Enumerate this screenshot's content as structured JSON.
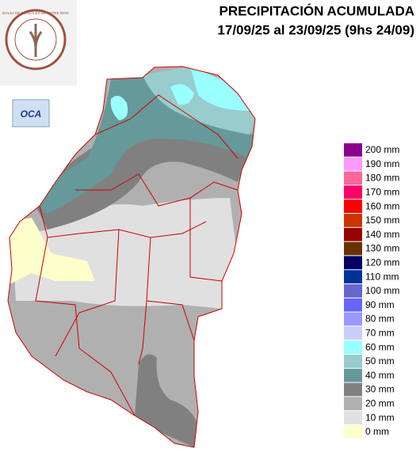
{
  "header": {
    "title": "PRECIPITACIÓN ACUMULADA",
    "subtitle": "17/09/25 al 23/09/25 (9hs 24/09)"
  },
  "logos": {
    "bolsa": "BOLSA DE CEREALES DE ENTRE RIOS",
    "oca": "OCA"
  },
  "legend": {
    "items": [
      {
        "label": "200 mm",
        "color": "#8b008b"
      },
      {
        "label": "190 mm",
        "color": "#ff99ff"
      },
      {
        "label": "180 mm",
        "color": "#ff6699"
      },
      {
        "label": "170 mm",
        "color": "#ff0066"
      },
      {
        "label": "160 mm",
        "color": "#ff0000"
      },
      {
        "label": "150 mm",
        "color": "#cc3300"
      },
      {
        "label": "140 mm",
        "color": "#990000"
      },
      {
        "label": "130 mm",
        "color": "#663300"
      },
      {
        "label": "120 mm",
        "color": "#000066"
      },
      {
        "label": "110 mm",
        "color": "#003399"
      },
      {
        "label": "100 mm",
        "color": "#6666cc"
      },
      {
        "label": "90 mm",
        "color": "#6666ff"
      },
      {
        "label": "80 mm",
        "color": "#9999ff"
      },
      {
        "label": "70 mm",
        "color": "#ccccff"
      },
      {
        "label": "60 mm",
        "color": "#99ffff"
      },
      {
        "label": "50 mm",
        "color": "#99cccc"
      },
      {
        "label": "40 mm",
        "color": "#669999"
      },
      {
        "label": "30 mm",
        "color": "#808080"
      },
      {
        "label": "20 mm",
        "color": "#b0b0b0"
      },
      {
        "label": "10 mm",
        "color": "#e0e0e0"
      },
      {
        "label": "0 mm",
        "color": "#ffffcc"
      }
    ]
  }
}
